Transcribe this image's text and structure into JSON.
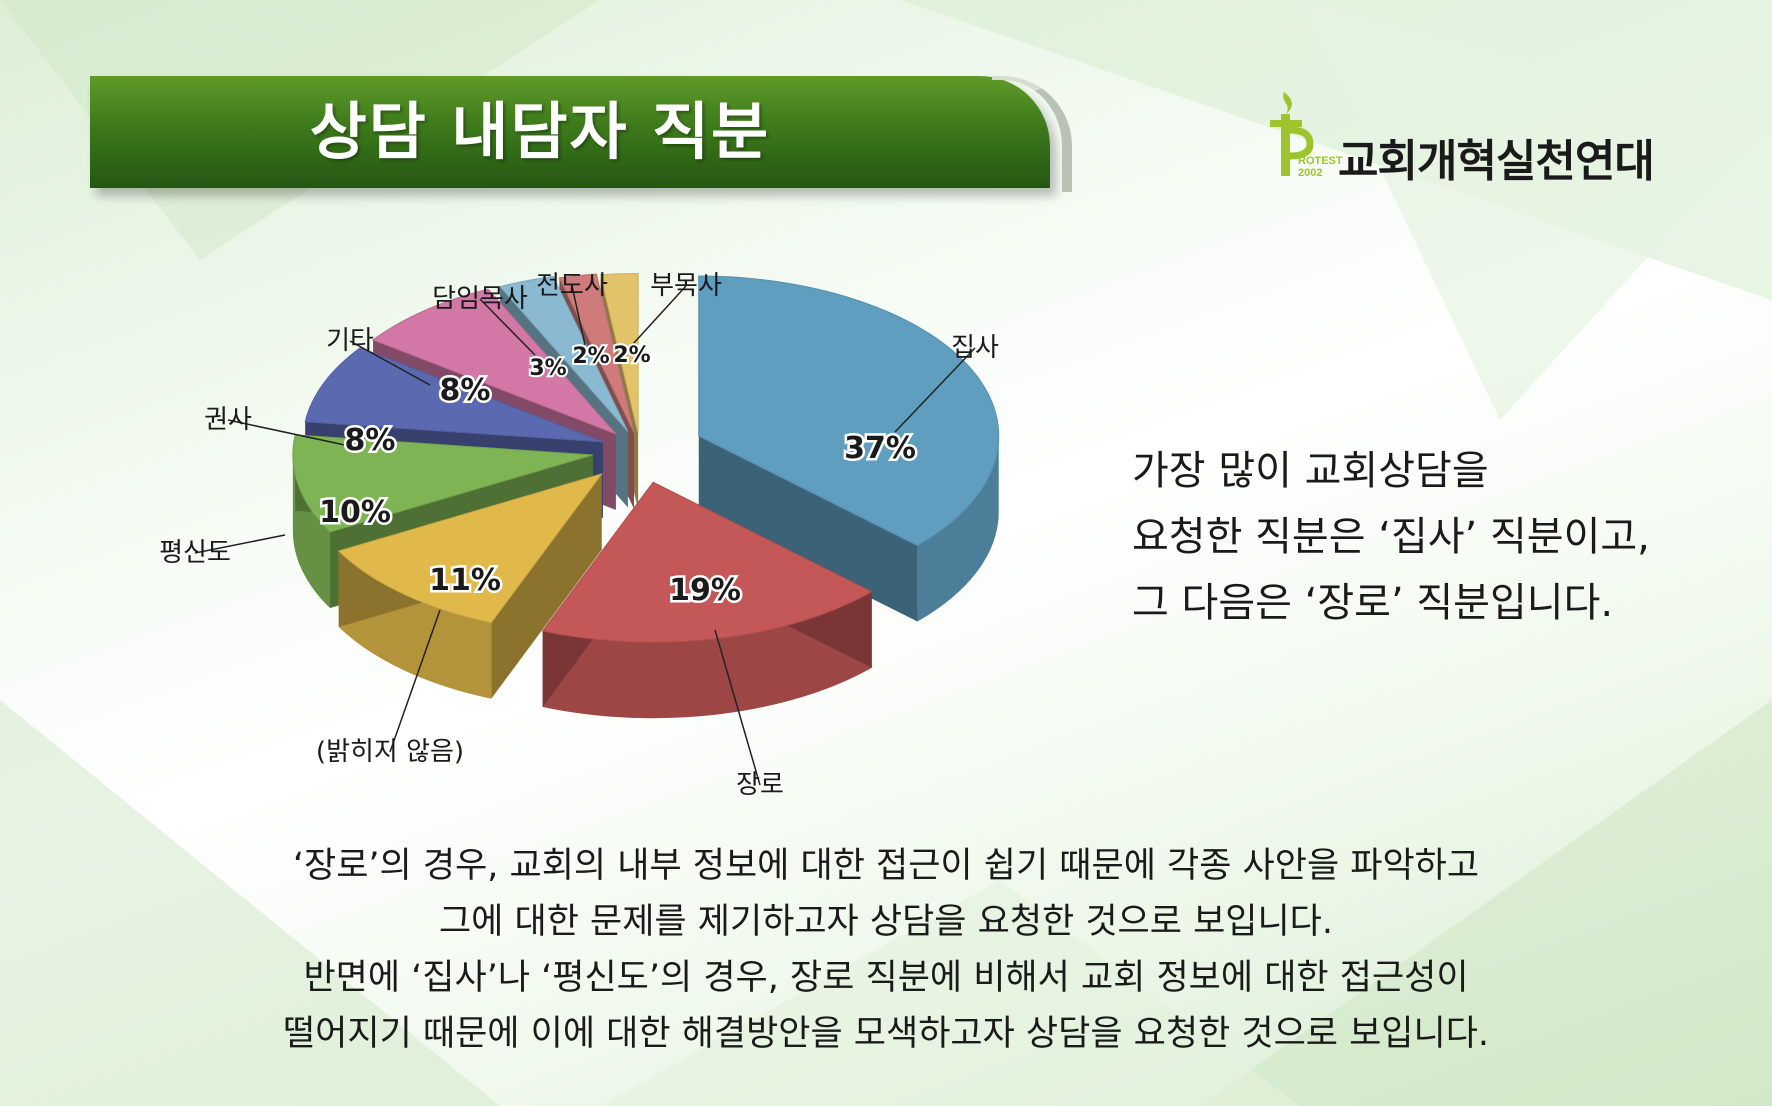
{
  "header": {
    "title": "상담 내담자 직분"
  },
  "logo": {
    "org_name": "교회개혁실천연대",
    "mark_text_1": "ROTEST",
    "mark_text_2": "2002",
    "accent_color": "#9dc42c"
  },
  "chart_data": {
    "type": "pie",
    "slices": [
      {
        "label": "집사",
        "value": 37,
        "value_label": "37%",
        "color": "#5f9ebf"
      },
      {
        "label": "장로",
        "value": 19,
        "value_label": "19%",
        "color": "#c45757"
      },
      {
        "label": "(밝히지 않음)",
        "value": 11,
        "value_label": "11%",
        "color": "#e0b94a"
      },
      {
        "label": "평신도",
        "value": 10,
        "value_label": "10%",
        "color": "#7fb455"
      },
      {
        "label": "권사",
        "value": 8,
        "value_label": "8%",
        "color": "#5b69b0"
      },
      {
        "label": "기타",
        "value": 8,
        "value_label": "8%",
        "color": "#d377a6"
      },
      {
        "label": "담임목사",
        "value": 3,
        "value_label": "3%",
        "color": "#8ab9d2"
      },
      {
        "label": "전도사",
        "value": 2,
        "value_label": "2%",
        "color": "#cf7b7b"
      },
      {
        "label": "부목사",
        "value": 2,
        "value_label": "2%",
        "color": "#e3c36a"
      }
    ]
  },
  "side_text": {
    "line1": "가장 많이 교회상담을",
    "line2": "요청한 직분은 ‘집사’ 직분이고,",
    "line3": "그 다음은 ‘장로’ 직분입니다."
  },
  "bottom_text": {
    "line1": "‘장로’의 경우, 교회의 내부 정보에 대한 접근이 쉽기 때문에 각종 사안을 파악하고",
    "line2": "그에 대한 문제를 제기하고자 상담을 요청한 것으로 보입니다.",
    "line3": "반면에 ‘집사’나 ‘평신도’의 경우, 장로 직분에 비해서 교회 정보에 대한 접근성이",
    "line4": "떨어지기 때문에 이에 대한 해결방안을 모색하고자 상담을 요청한 것으로 보입니다."
  }
}
